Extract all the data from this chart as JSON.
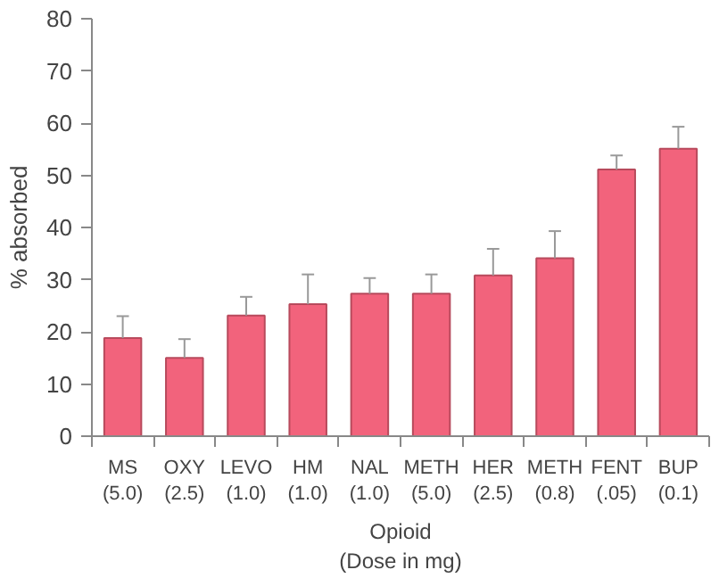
{
  "chart_data": {
    "type": "bar",
    "xlabel": "Opioid\n(Dose in mg)",
    "ylabel": "% absorbed",
    "categories": [
      "MS\n(5.0)",
      "OXY\n(2.5)",
      "LEVO\n(1.0)",
      "HM\n(1.0)",
      "NAL\n(1.0)",
      "METH\n(5.0)",
      "HER\n(2.5)",
      "METH\n(0.8)",
      "FENT\n(.05)",
      "BUP\n(0.1)"
    ],
    "values": [
      18.8,
      15.0,
      23.1,
      25.3,
      27.3,
      27.3,
      30.8,
      34.1,
      51.1,
      55.1
    ],
    "errors": [
      [
        18.8,
        23.0
      ],
      [
        15.0,
        18.6
      ],
      [
        23.1,
        26.7
      ],
      [
        25.3,
        31.0
      ],
      [
        27.3,
        30.3
      ],
      [
        27.3,
        31.0
      ],
      [
        30.8,
        35.9
      ],
      [
        34.1,
        39.3
      ],
      [
        51.1,
        53.8
      ],
      [
        55.1,
        59.3
      ]
    ],
    "color": "#f2637c",
    "ylim": [
      0,
      80
    ],
    "yticks": [
      0,
      10,
      20,
      30,
      40,
      50,
      60,
      70,
      80
    ],
    "grid": false
  }
}
